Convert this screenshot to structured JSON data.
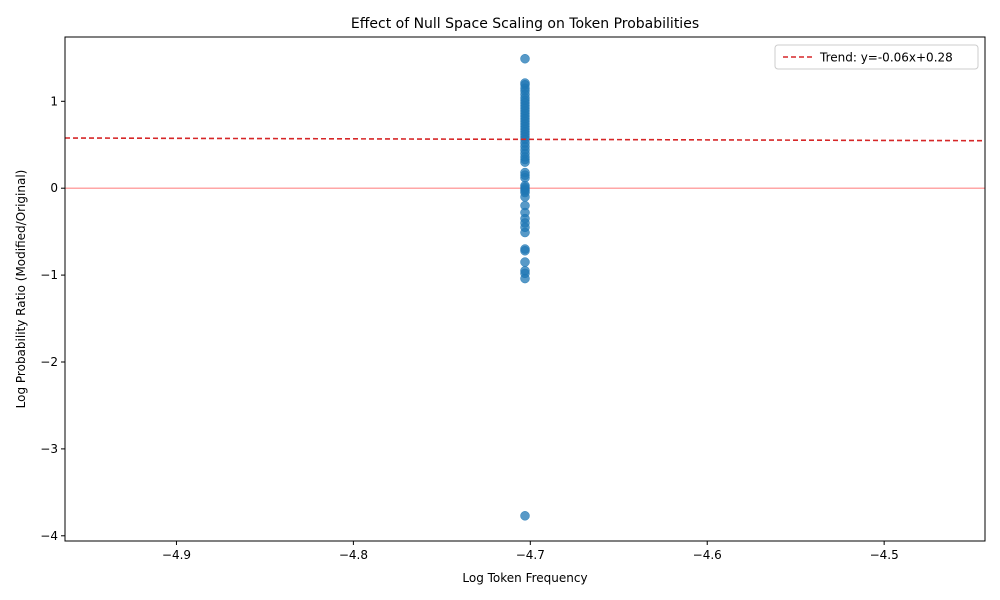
{
  "chart_data": {
    "type": "scatter",
    "title": "Effect of Null Space Scaling on Token Probabilities",
    "xlabel": "Log Token Frequency",
    "ylabel": "Log Probability Ratio (Modified/Original)",
    "xlim": [
      -4.963,
      -4.443
    ],
    "ylim": [
      -4.06,
      1.74
    ],
    "xticks": [
      -4.9,
      -4.8,
      -4.7,
      -4.6,
      -4.5
    ],
    "xtick_labels": [
      "−4.9",
      "−4.8",
      "−4.7",
      "−4.6",
      "−4.5"
    ],
    "yticks": [
      -4,
      -3,
      -2,
      -1,
      0,
      1
    ],
    "ytick_labels": [
      "−4",
      "−3",
      "−2",
      "−1",
      "0",
      "1"
    ],
    "point_color": "#1f77b4",
    "x_value": -4.703,
    "y": [
      1.49,
      1.21,
      1.19,
      1.15,
      1.12,
      1.08,
      1.04,
      1.01,
      0.98,
      0.95,
      0.92,
      0.89,
      0.86,
      0.83,
      0.8,
      0.77,
      0.74,
      0.71,
      0.68,
      0.65,
      0.62,
      0.59,
      0.56,
      0.52,
      0.48,
      0.44,
      0.4,
      0.36,
      0.33,
      0.3,
      0.18,
      0.15,
      0.12,
      0.03,
      0.01,
      -0.01,
      -0.03,
      -0.05,
      -0.1,
      -0.2,
      -0.28,
      -0.35,
      -0.4,
      -0.45,
      -0.51,
      -0.7,
      -0.72,
      -0.85,
      -0.95,
      -0.98,
      -1.04,
      -3.77
    ],
    "reference_line": {
      "y": 0,
      "color": "#ff8080"
    },
    "trend": {
      "slope": -0.06,
      "intercept": 0.28,
      "color": "#d62728",
      "label": "Trend: y=-0.06x+0.28"
    },
    "legend_position": "top-right",
    "grid": false
  }
}
